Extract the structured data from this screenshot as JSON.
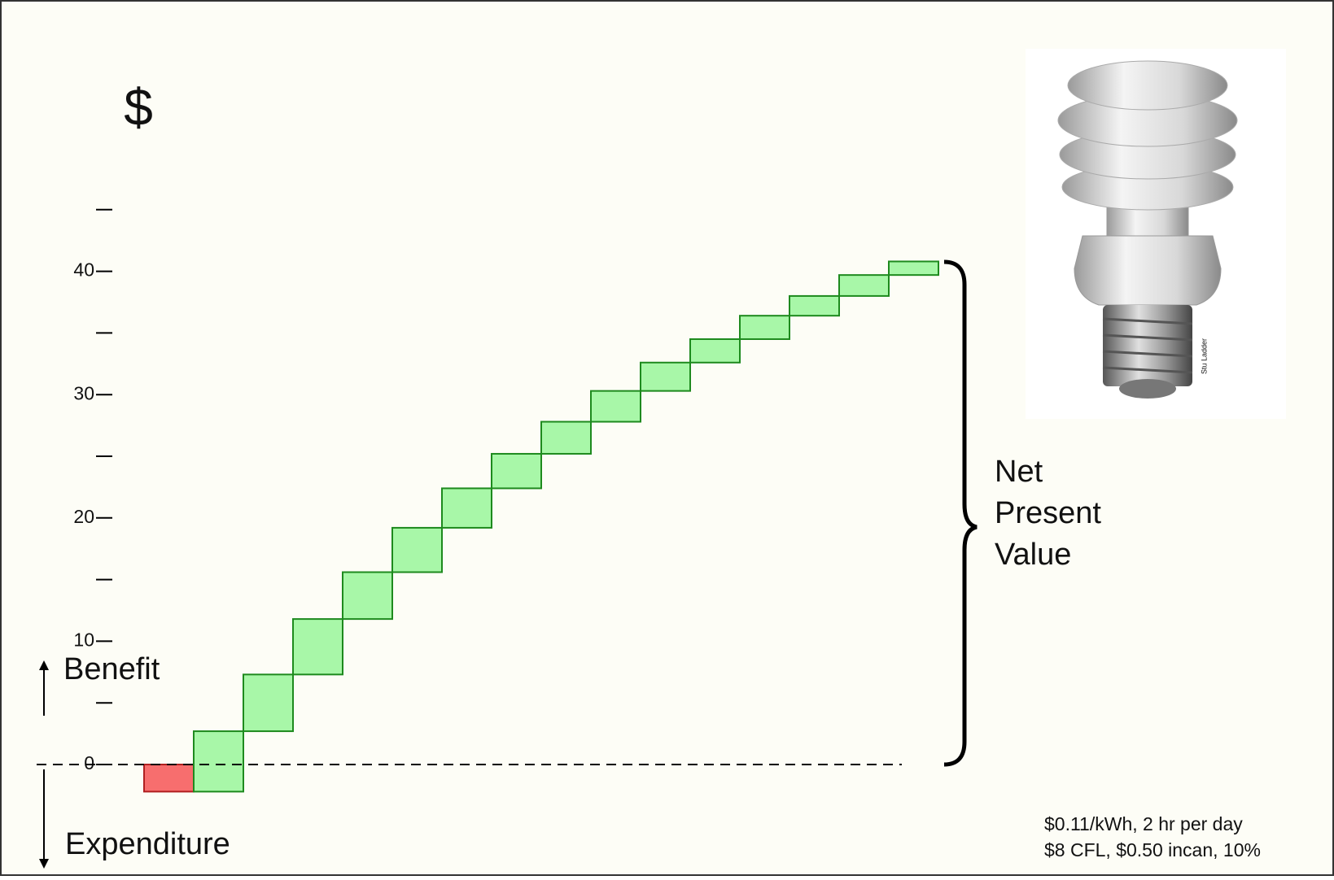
{
  "chart_data": {
    "type": "waterfall",
    "y_label": "$",
    "categories": [
      null,
      null,
      null,
      null,
      null,
      null,
      null,
      null,
      null,
      null,
      null,
      null,
      null,
      null,
      null,
      null
    ],
    "values": [
      -2.2,
      4.9,
      4.6,
      4.5,
      3.8,
      3.6,
      3.2,
      2.8,
      2.6,
      2.5,
      2.3,
      1.9,
      1.9,
      1.6,
      1.7,
      1.1
    ],
    "colors": {
      "increase": "#a8f7a8",
      "decrease": "#f76e6e",
      "increase_edge": "#1e8a1e",
      "decrease_edge": "#b02020"
    },
    "ylim": [
      -8,
      50
    ],
    "yticks": [
      0,
      10,
      20,
      30,
      40
    ],
    "yminor_ticks": [
      5,
      15,
      25,
      35,
      45
    ],
    "up_label": "Benefit",
    "down_label": "Expenditure",
    "bracket_label": [
      "Net",
      "Present",
      "Value"
    ],
    "note": [
      "$0.11/kWh, 2 hr per day",
      "$8 CFL, $0.50 incan, 10%"
    ],
    "image_credit": "Stu Ladder"
  }
}
